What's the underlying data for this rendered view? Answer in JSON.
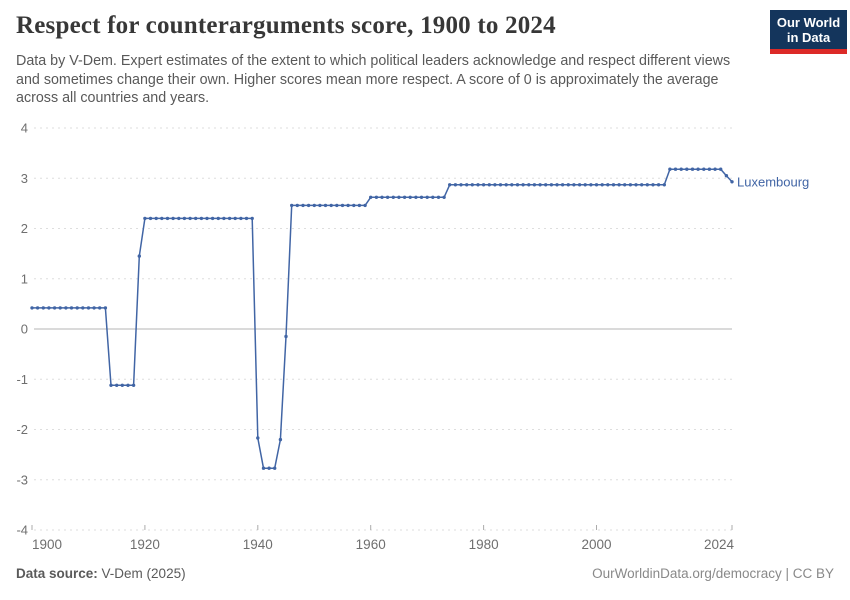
{
  "header": {
    "logo": {
      "line1": "Our World",
      "line2": "in Data",
      "navy": "#14355c",
      "red": "#dc2a27"
    }
  },
  "chart_data": {
    "type": "line",
    "title": "Respect for counterarguments score, 1900 to 2024",
    "subtitle": "Data by V-Dem. Expert estimates of the extent to which political leaders acknowledge and respect different views and sometimes change their own. Higher scores mean more respect. A score of 0 is approximately the average across all countries and years.",
    "xlabel": "",
    "ylabel": "",
    "x": {
      "min": 1900,
      "max": 2024,
      "ticks": [
        1900,
        1920,
        1940,
        1960,
        1980,
        2000,
        2024
      ]
    },
    "y": {
      "min": -4,
      "max": 4,
      "ticks": [
        4,
        3,
        2,
        1,
        0,
        -1,
        -2,
        -3,
        -4
      ],
      "grid": "dashed-horizontal",
      "zero_line": "solid"
    },
    "legend_position": "end-of-line-label",
    "colors": {
      "grid": "#dedede",
      "zero_line": "#b5b5b5",
      "tick_text": "#6f6f6f"
    },
    "series": [
      {
        "name": "Luxembourg",
        "color": "#4165a5",
        "marker": "dot-every-year",
        "runs": [
          {
            "from": 1900,
            "to": 1913,
            "value": 0.42
          },
          {
            "from": 1914,
            "to": 1918,
            "value": -1.12
          },
          {
            "from": 1919,
            "to": 1919,
            "value": 1.45
          },
          {
            "from": 1920,
            "to": 1939,
            "value": 2.2
          },
          {
            "from": 1940,
            "to": 1940,
            "value": -2.17
          },
          {
            "from": 1941,
            "to": 1943,
            "value": -2.77
          },
          {
            "from": 1944,
            "to": 1944,
            "value": -2.2
          },
          {
            "from": 1945,
            "to": 1945,
            "value": -0.15
          },
          {
            "from": 1946,
            "to": 1959,
            "value": 2.46
          },
          {
            "from": 1960,
            "to": 1973,
            "value": 2.62
          },
          {
            "from": 1974,
            "to": 2012,
            "value": 2.87
          },
          {
            "from": 2013,
            "to": 2022,
            "value": 3.18
          },
          {
            "from": 2023,
            "to": 2023,
            "value": 3.05
          },
          {
            "from": 2024,
            "to": 2024,
            "value": 2.93
          }
        ]
      }
    ]
  },
  "footer": {
    "source_label": "Data source:",
    "source_value": "V-Dem (2025)",
    "link": "OurWorldinData.org/democracy",
    "license": "| CC BY"
  }
}
